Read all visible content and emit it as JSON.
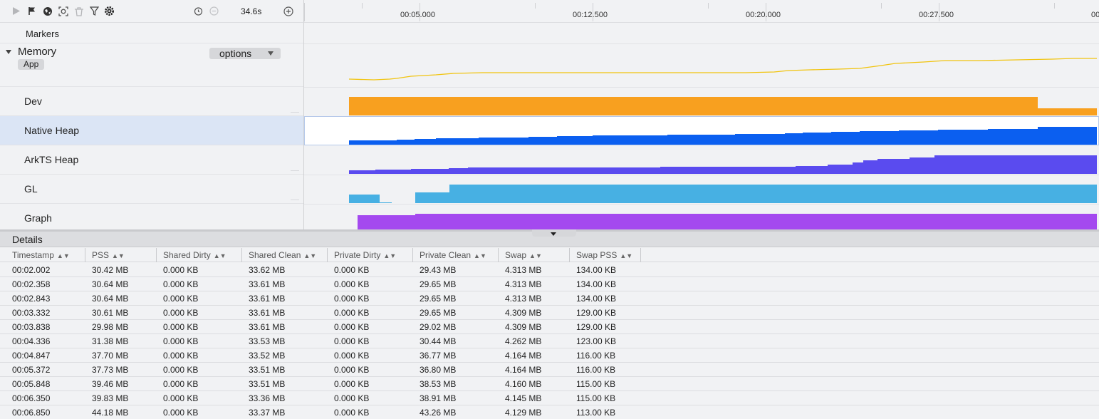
{
  "toolbar": {
    "zoom_readout": "34.6s"
  },
  "ruler": {
    "labels": [
      "00:05.000",
      "00:12.500",
      "00:20.000",
      "00:27.500",
      "00"
    ]
  },
  "lanes": {
    "markers": "Markers",
    "memory": "Memory",
    "options": "options",
    "app_tag": "App",
    "dev": "Dev",
    "native_heap": "Native Heap",
    "arkts_heap": "ArkTS Heap",
    "gl": "GL",
    "graph": "Graph"
  },
  "colors": {
    "memory_line": "#f1c40f",
    "dev": "#f8a01f",
    "native_heap": "#0b5ff0",
    "arkts_heap": "#5a4bef",
    "gl": "#47b0e3",
    "graph": "#a449ef",
    "selection": "#dbe5f5"
  },
  "details": {
    "title": "Details",
    "columns": [
      "Timestamp",
      "PSS",
      "Shared Dirty",
      "Shared Clean",
      "Private Dirty",
      "Private Clean",
      "Swap",
      "Swap PSS"
    ],
    "rows": [
      [
        "00:02.002",
        "30.42 MB",
        "0.000 KB",
        "33.62 MB",
        "0.000 KB",
        "29.43 MB",
        "4.313 MB",
        "134.00 KB"
      ],
      [
        "00:02.358",
        "30.64 MB",
        "0.000 KB",
        "33.61 MB",
        "0.000 KB",
        "29.65 MB",
        "4.313 MB",
        "134.00 KB"
      ],
      [
        "00:02.843",
        "30.64 MB",
        "0.000 KB",
        "33.61 MB",
        "0.000 KB",
        "29.65 MB",
        "4.313 MB",
        "134.00 KB"
      ],
      [
        "00:03.332",
        "30.61 MB",
        "0.000 KB",
        "33.61 MB",
        "0.000 KB",
        "29.65 MB",
        "4.309 MB",
        "129.00 KB"
      ],
      [
        "00:03.838",
        "29.98 MB",
        "0.000 KB",
        "33.61 MB",
        "0.000 KB",
        "29.02 MB",
        "4.309 MB",
        "129.00 KB"
      ],
      [
        "00:04.336",
        "31.38 MB",
        "0.000 KB",
        "33.53 MB",
        "0.000 KB",
        "30.44 MB",
        "4.262 MB",
        "123.00 KB"
      ],
      [
        "00:04.847",
        "37.70 MB",
        "0.000 KB",
        "33.52 MB",
        "0.000 KB",
        "36.77 MB",
        "4.164 MB",
        "116.00 KB"
      ],
      [
        "00:05.372",
        "37.73 MB",
        "0.000 KB",
        "33.51 MB",
        "0.000 KB",
        "36.80 MB",
        "4.164 MB",
        "116.00 KB"
      ],
      [
        "00:05.848",
        "39.46 MB",
        "0.000 KB",
        "33.51 MB",
        "0.000 KB",
        "38.53 MB",
        "4.160 MB",
        "115.00 KB"
      ],
      [
        "00:06.350",
        "39.83 MB",
        "0.000 KB",
        "33.36 MB",
        "0.000 KB",
        "38.91 MB",
        "4.145 MB",
        "115.00 KB"
      ],
      [
        "00:06.850",
        "44.18 MB",
        "0.000 KB",
        "33.37 MB",
        "0.000 KB",
        "43.26 MB",
        "4.129 MB",
        "113.00 KB"
      ]
    ]
  }
}
